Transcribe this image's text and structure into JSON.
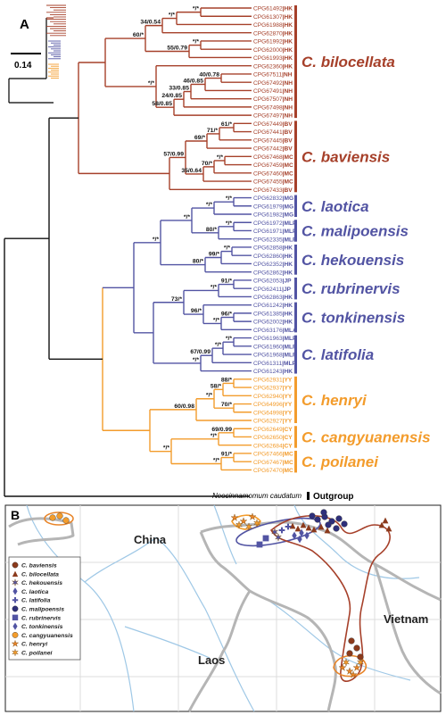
{
  "panel_a_label": "A",
  "panel_b_label": "B",
  "scale_label": "0.14",
  "colors": {
    "red": "#a6402a",
    "blue": "#5254a3",
    "orange": "#f39c2c",
    "black": "#111111"
  },
  "support": [
    "*/*",
    "*/*",
    "34/0.54",
    "*/*",
    "55/0.79",
    "60/*",
    "40/0.78",
    "46/0.85",
    "33/0.85",
    "24/0.85",
    "58/0.85",
    "*/*",
    "61/*",
    "71/*",
    "69/*",
    "*/*",
    "70/*",
    "35/0.64",
    "57/0.99",
    "*/*",
    "*/*",
    "*/*",
    "80/*",
    "*/*",
    "*/*",
    "99/*",
    "80/*",
    "*/*",
    "91/*",
    "*/*",
    "96/*",
    "*/*",
    "96/*",
    "73/*",
    "*/*",
    "*/*",
    "67/0.99",
    "*/*",
    "88/*",
    "58/*",
    "70/*",
    "*/*",
    "60/0.98",
    "69/0.99",
    "*/*",
    "91/*",
    "*/*",
    "*/*"
  ],
  "tips": [
    {
      "id": "CPG61492",
      "pop": "HK",
      "clade": "red"
    },
    {
      "id": "CPG61307",
      "pop": "HK",
      "clade": "red"
    },
    {
      "id": "CPG61988",
      "pop": "HK",
      "clade": "red"
    },
    {
      "id": "CPG62870",
      "pop": "HK",
      "clade": "red"
    },
    {
      "id": "CPG61992",
      "pop": "HK",
      "clade": "red"
    },
    {
      "id": "CPG62000",
      "pop": "HK",
      "clade": "red"
    },
    {
      "id": "CPG61993",
      "pop": "HK",
      "clade": "red"
    },
    {
      "id": "CPG62360",
      "pop": "HK",
      "clade": "red"
    },
    {
      "id": "CPG67511",
      "pop": "NH",
      "clade": "red"
    },
    {
      "id": "CPG67492",
      "pop": "NH",
      "clade": "red"
    },
    {
      "id": "CPG67491",
      "pop": "NH",
      "clade": "red"
    },
    {
      "id": "CPG67507",
      "pop": "NH",
      "clade": "red"
    },
    {
      "id": "CPG67498",
      "pop": "NH",
      "clade": "red"
    },
    {
      "id": "CPG67497",
      "pop": "NH",
      "clade": "red"
    },
    {
      "id": "CPG67449",
      "pop": "BV",
      "clade": "red"
    },
    {
      "id": "CPG67441",
      "pop": "BV",
      "clade": "red"
    },
    {
      "id": "CPG67445",
      "pop": "BV",
      "clade": "red"
    },
    {
      "id": "CPG67442",
      "pop": "BV",
      "clade": "red"
    },
    {
      "id": "CPG67468",
      "pop": "MC",
      "clade": "red"
    },
    {
      "id": "CPG67459",
      "pop": "MC",
      "clade": "red"
    },
    {
      "id": "CPG67460",
      "pop": "MC",
      "clade": "red"
    },
    {
      "id": "CPG67455",
      "pop": "MC",
      "clade": "red"
    },
    {
      "id": "CPG67433",
      "pop": "BV",
      "clade": "red"
    },
    {
      "id": "CPG62832",
      "pop": "MG",
      "clade": "blue"
    },
    {
      "id": "CPG61979",
      "pop": "MG",
      "clade": "blue"
    },
    {
      "id": "CPG61982",
      "pop": "MG",
      "clade": "blue"
    },
    {
      "id": "CPG61972",
      "pop": "MLP",
      "clade": "blue"
    },
    {
      "id": "CPG61971",
      "pop": "MLP",
      "clade": "blue"
    },
    {
      "id": "CPG62335",
      "pop": "MLP",
      "clade": "blue"
    },
    {
      "id": "CPG62858",
      "pop": "HK",
      "clade": "blue"
    },
    {
      "id": "CPG62860",
      "pop": "HK",
      "clade": "blue"
    },
    {
      "id": "CPG62352",
      "pop": "HK",
      "clade": "blue"
    },
    {
      "id": "CPG62862",
      "pop": "HK",
      "clade": "blue"
    },
    {
      "id": "CPG62053",
      "pop": "JP",
      "clade": "blue"
    },
    {
      "id": "CPG62411",
      "pop": "JP",
      "clade": "blue"
    },
    {
      "id": "CPG62863",
      "pop": "HK",
      "clade": "blue"
    },
    {
      "id": "CPG61242",
      "pop": "HK",
      "clade": "blue"
    },
    {
      "id": "CPG61385",
      "pop": "HK",
      "clade": "blue"
    },
    {
      "id": "CPG62002",
      "pop": "HK",
      "clade": "blue"
    },
    {
      "id": "CPG63176",
      "pop": "MLA",
      "clade": "blue"
    },
    {
      "id": "CPG61963",
      "pop": "MLP",
      "clade": "blue"
    },
    {
      "id": "CPG61960",
      "pop": "MLP",
      "clade": "blue"
    },
    {
      "id": "CPG61968",
      "pop": "MLP",
      "clade": "blue"
    },
    {
      "id": "CPG61311",
      "pop": "MLP",
      "clade": "blue"
    },
    {
      "id": "CPG61243",
      "pop": "HK",
      "clade": "blue"
    },
    {
      "id": "CPG62931",
      "pop": "YY",
      "clade": "orange"
    },
    {
      "id": "CPG62937",
      "pop": "YY",
      "clade": "orange"
    },
    {
      "id": "CPG62940",
      "pop": "YY",
      "clade": "orange"
    },
    {
      "id": "CPG64996",
      "pop": "YY",
      "clade": "orange"
    },
    {
      "id": "CPG64998",
      "pop": "YY",
      "clade": "orange"
    },
    {
      "id": "CPG62927",
      "pop": "YY",
      "clade": "orange"
    },
    {
      "id": "CPG62649",
      "pop": "CY",
      "clade": "orange"
    },
    {
      "id": "CPG62650",
      "pop": "CY",
      "clade": "orange"
    },
    {
      "id": "CPG62684",
      "pop": "CY",
      "clade": "orange"
    },
    {
      "id": "CPG67466",
      "pop": "MC",
      "clade": "orange"
    },
    {
      "id": "CPG67467",
      "pop": "MC",
      "clade": "orange"
    },
    {
      "id": "CPG67470",
      "pop": "MC",
      "clade": "orange"
    }
  ],
  "clade_labels": [
    {
      "name": "C. bilocellata",
      "clade": "red"
    },
    {
      "name": "C. baviensis",
      "clade": "red"
    },
    {
      "name": "C. laotica",
      "clade": "blue"
    },
    {
      "name": "C. malipoensis",
      "clade": "blue"
    },
    {
      "name": "C. hekouensis",
      "clade": "blue"
    },
    {
      "name": "C. rubrinervis",
      "clade": "blue"
    },
    {
      "name": "C. tonkinensis",
      "clade": "blue"
    },
    {
      "name": "C. latifolia",
      "clade": "blue"
    },
    {
      "name": "C. henryi",
      "clade": "orange"
    },
    {
      "name": "C. cangyuanensis",
      "clade": "orange"
    },
    {
      "name": "C. poilanei",
      "clade": "orange"
    }
  ],
  "outgroup_taxon": "Neocinnamomum caudatum",
  "outgroup_label": "Outgroup",
  "map": {
    "countries": [
      "China",
      "Laos",
      "Vietnam"
    ],
    "legend": [
      {
        "name": "C. baviensis",
        "symbol": "circle",
        "color": "#8b3a1c"
      },
      {
        "name": "C. bilocellata",
        "symbol": "triangle",
        "color": "#8b3a1c"
      },
      {
        "name": "C. hekouensis",
        "symbol": "star6",
        "color": "#5254a3"
      },
      {
        "name": "C. laotica",
        "symbol": "diamond",
        "color": "#5254a3"
      },
      {
        "name": "C. latifolia",
        "symbol": "cross",
        "color": "#5254a3"
      },
      {
        "name": "C. malipoensis",
        "symbol": "circle",
        "color": "#2e2f7a"
      },
      {
        "name": "C. rubrinervis",
        "symbol": "square",
        "color": "#5254a3"
      },
      {
        "name": "C. tonkinensis",
        "symbol": "diamond4",
        "color": "#5254a3"
      },
      {
        "name": "C. cangyuanensis",
        "symbol": "circle",
        "color": "#f39c2c"
      },
      {
        "name": "C. henryi",
        "symbol": "star5",
        "color": "#e8852a"
      },
      {
        "name": "C. poilanei",
        "symbol": "star6",
        "color": "#f39c2c"
      }
    ]
  }
}
